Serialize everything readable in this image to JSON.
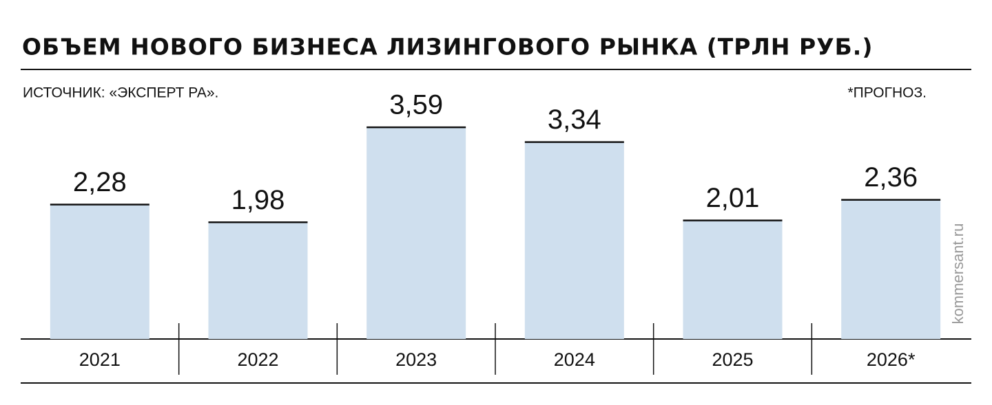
{
  "chart_data": {
    "type": "bar",
    "title": "ОБЪЕМ НОВОГО БИЗНЕСА ЛИЗИНГОВОГО РЫНКА (ТРЛН РУБ.)",
    "source": "ИСТОЧНИК: «ЭКСПЕРТ РА».",
    "note": "*ПРОГНОЗ.",
    "watermark": "kommersant.ru",
    "categories": [
      "2021",
      "2022",
      "2023",
      "2024",
      "2025",
      "2026*"
    ],
    "values": [
      2.28,
      1.98,
      3.59,
      3.34,
      2.01,
      2.36
    ],
    "value_labels": [
      "2,28",
      "1,98",
      "3,59",
      "3,34",
      "2,01",
      "2,36"
    ],
    "color": "#cfdfee",
    "ylim": [
      0,
      4
    ]
  }
}
